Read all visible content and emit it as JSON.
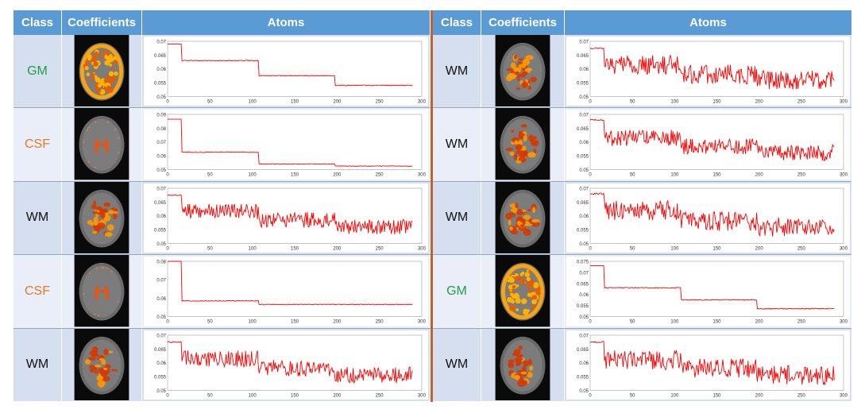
{
  "headers": {
    "class": "Class",
    "coefficients": "Coefficients",
    "atoms": "Atoms"
  },
  "colors": {
    "header_bg": "#5b9bd5",
    "GM": "#1f9e4a",
    "CSF": "#e07b27",
    "WM": "#111111",
    "series": "#ff0000",
    "divider": "#c0622e"
  },
  "rows": [
    {
      "left": {
        "class": "GM",
        "brain": "gm",
        "atom": {
          "levels": [
            0.069,
            0.063,
            0.0575,
            0.054
          ],
          "noise": 0.00015,
          "ylim": [
            0.05,
            0.07
          ],
          "yticks": [
            "0.07",
            "0.065",
            "0.06",
            "0.055",
            "0.05"
          ]
        }
      },
      "right": {
        "class": "WM",
        "brain": "wm",
        "atom": {
          "levels": [
            0.0675,
            0.0615,
            0.058,
            0.056
          ],
          "noise": 0.0035,
          "ylim": [
            0.05,
            0.07
          ],
          "yticks": [
            "0.07",
            "0.065",
            "0.06",
            "0.055",
            "0.05"
          ]
        }
      }
    },
    {
      "left": {
        "class": "CSF",
        "brain": "csf",
        "atom": {
          "levels": [
            0.0865,
            0.0625,
            0.054,
            0.0525
          ],
          "noise": 0.0002,
          "ylim": [
            0.05,
            0.09
          ],
          "yticks": [
            "0.09",
            "0.08",
            "0.07",
            "0.06",
            "0.05"
          ]
        }
      },
      "right": {
        "class": "WM",
        "brain": "wm",
        "atom": {
          "levels": [
            0.068,
            0.0615,
            0.0585,
            0.056
          ],
          "noise": 0.003,
          "ylim": [
            0.05,
            0.07
          ],
          "yticks": [
            "0.07",
            "0.065",
            "0.06",
            "0.055",
            "0.05"
          ]
        }
      }
    },
    {
      "left": {
        "class": "WM",
        "brain": "wm",
        "atom": {
          "levels": [
            0.0675,
            0.0615,
            0.0585,
            0.056
          ],
          "noise": 0.0028,
          "ylim": [
            0.05,
            0.07
          ],
          "yticks": [
            "0.07",
            "0.065",
            "0.06",
            "0.055",
            "0.05"
          ]
        }
      },
      "right": {
        "class": "WM",
        "brain": "wm",
        "atom": {
          "levels": [
            0.068,
            0.062,
            0.058,
            0.056
          ],
          "noise": 0.0035,
          "ylim": [
            0.05,
            0.07
          ],
          "yticks": [
            "0.07",
            "0.065",
            "0.06",
            "0.055",
            "0.05"
          ]
        }
      }
    },
    {
      "left": {
        "class": "CSF",
        "brain": "csf",
        "atom": {
          "levels": [
            0.081,
            0.0585,
            0.0565,
            0.0565
          ],
          "noise": 0.0002,
          "ylim": [
            0.05,
            0.08
          ],
          "yticks": [
            "0.08",
            "0.07",
            "0.06",
            "0.05"
          ]
        }
      },
      "right": {
        "class": "GM",
        "brain": "gm",
        "atom": {
          "levels": [
            0.073,
            0.063,
            0.0575,
            0.0535
          ],
          "noise": 0.0002,
          "ylim": [
            0.05,
            0.075
          ],
          "yticks": [
            "0.075",
            "0.07",
            "0.065",
            "0.06",
            "0.055",
            "0.05"
          ]
        }
      }
    },
    {
      "left": {
        "class": "WM",
        "brain": "wm",
        "atom": {
          "levels": [
            0.0675,
            0.0615,
            0.058,
            0.0555
          ],
          "noise": 0.003,
          "ylim": [
            0.05,
            0.07
          ],
          "yticks": [
            "0.07",
            "0.065",
            "0.06",
            "0.055",
            "0.05"
          ]
        }
      },
      "right": {
        "class": "WM",
        "brain": "wm",
        "atom": {
          "levels": [
            0.0675,
            0.061,
            0.058,
            0.0555
          ],
          "noise": 0.0035,
          "ylim": [
            0.05,
            0.07
          ],
          "yticks": [
            "0.07",
            "0.065",
            "0.06",
            "0.055",
            "0.05"
          ]
        }
      }
    }
  ],
  "chart_data": {
    "type": "line",
    "x_range": [
      0,
      300
    ],
    "x_ticks": [
      "0",
      "50",
      "100",
      "150",
      "200",
      "250",
      "300"
    ],
    "n_points": 290,
    "step_breaks": [
      17,
      108,
      198
    ],
    "series_color": "#ff0000"
  }
}
